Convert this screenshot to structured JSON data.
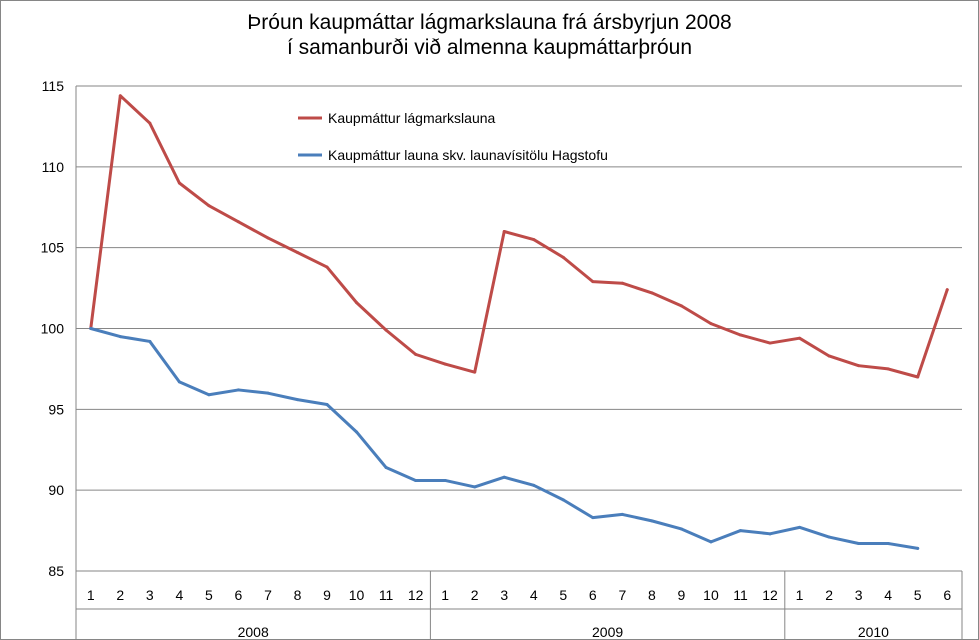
{
  "chart_data": {
    "type": "line",
    "title_line1": "Þróun kaupmáttar lágmarkslauna frá ársbyrjun 2008",
    "title_line2": "í samanburði við almenna kaupmáttarþróun",
    "xlabel": "",
    "ylabel": "",
    "ylim": [
      85,
      115
    ],
    "yticks": [
      85,
      90,
      95,
      100,
      105,
      110,
      115
    ],
    "grid": true,
    "legend_position": "top-left inside plot",
    "categories": [
      "1",
      "2",
      "3",
      "4",
      "5",
      "6",
      "7",
      "8",
      "9",
      "10",
      "11",
      "12",
      "1",
      "2",
      "3",
      "4",
      "5",
      "6",
      "7",
      "8",
      "9",
      "10",
      "11",
      "12",
      "1",
      "2",
      "3",
      "4",
      "5",
      "6"
    ],
    "groups": [
      {
        "label": "2008",
        "count": 12
      },
      {
        "label": "2009",
        "count": 12
      },
      {
        "label": "2010",
        "count": 6
      }
    ],
    "series": [
      {
        "name": "Kaupmáttur lágmarkslauna",
        "color": "#be4b48",
        "values": [
          100.0,
          114.4,
          112.7,
          109.0,
          107.6,
          106.6,
          105.6,
          104.7,
          103.8,
          101.6,
          99.9,
          98.4,
          97.8,
          97.3,
          106.0,
          105.5,
          104.4,
          102.9,
          102.8,
          102.2,
          101.4,
          100.3,
          99.6,
          99.1,
          99.4,
          98.3,
          97.7,
          97.5,
          97.0,
          102.4
        ]
      },
      {
        "name": "Kaupmáttur launa skv. launavísitölu Hagstofu",
        "color": "#4a7ebb",
        "values": [
          100.0,
          99.5,
          99.2,
          96.7,
          95.9,
          96.2,
          96.0,
          95.6,
          95.3,
          93.6,
          91.4,
          90.6,
          90.6,
          90.2,
          90.8,
          90.3,
          89.4,
          88.3,
          88.5,
          88.1,
          87.6,
          86.8,
          87.5,
          87.3,
          87.7,
          87.1,
          86.7,
          86.7,
          86.4,
          null
        ]
      }
    ]
  }
}
